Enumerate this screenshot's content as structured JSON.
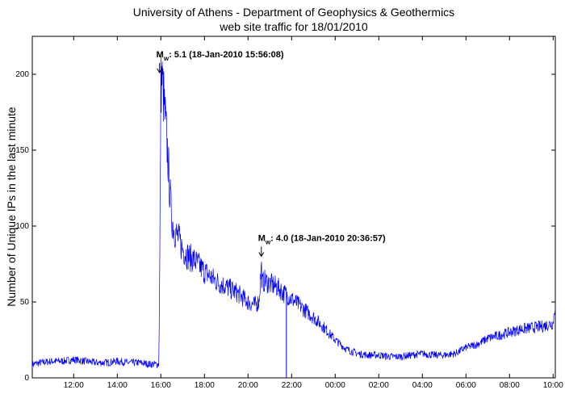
{
  "chart_data": {
    "type": "line",
    "title": "University of Athens - Department of Geophysics & Geothermics",
    "subtitle": "web site traffic for 18/01/2010",
    "xlabel": "",
    "ylabel": "Number of Unique IPs in the last minute",
    "ylim": [
      0,
      225
    ],
    "yticks": [
      0,
      50,
      100,
      150,
      200
    ],
    "xlim_hours": [
      10.1,
      34.1
    ],
    "xticks": [
      {
        "hour": 12,
        "label": "12:00"
      },
      {
        "hour": 14,
        "label": "14:00"
      },
      {
        "hour": 16,
        "label": "16:00"
      },
      {
        "hour": 18,
        "label": "18:00"
      },
      {
        "hour": 20,
        "label": "20:00"
      },
      {
        "hour": 22,
        "label": "22:00"
      },
      {
        "hour": 24,
        "label": "00:00"
      },
      {
        "hour": 26,
        "label": "02:00"
      },
      {
        "hour": 28,
        "label": "04:00"
      },
      {
        "hour": 30,
        "label": "06:00"
      },
      {
        "hour": 32,
        "label": "08:00"
      },
      {
        "hour": 34,
        "label": "10:00"
      }
    ],
    "grid": false,
    "series": [
      {
        "color": "#0000ff",
        "x_hour": [
          10.1,
          10.5,
          11,
          11.5,
          12,
          12.5,
          13,
          13.5,
          14,
          14.5,
          15,
          15.5,
          15.9,
          15.94,
          16.0,
          16.05,
          16.1,
          16.2,
          16.3,
          16.4,
          16.5,
          16.6,
          16.8,
          17.0,
          17.25,
          17.5,
          18.0,
          18.5,
          19.0,
          19.5,
          20.0,
          20.3,
          20.5,
          20.61,
          20.65,
          20.75,
          21.0,
          21.3,
          21.5,
          21.6,
          21.75,
          22.0,
          22.5,
          23.0,
          23.5,
          24.0,
          24.5,
          25.0,
          25.5,
          26.0,
          26.5,
          27.0,
          27.5,
          28.0,
          28.5,
          29.0,
          29.5,
          30.0,
          30.5,
          31.0,
          31.5,
          32.0,
          32.5,
          33.0,
          33.5,
          34.0,
          34.1
        ],
        "y": [
          9,
          10,
          11,
          11,
          12,
          11,
          10,
          10,
          11,
          10,
          10,
          9,
          9,
          55,
          195,
          197,
          190,
          170,
          150,
          125,
          105,
          98,
          92,
          85,
          80,
          78,
          70,
          64,
          60,
          56,
          50,
          48,
          50,
          74,
          62,
          64,
          62,
          60,
          58,
          56,
          55,
          52,
          46,
          40,
          33,
          25,
          19,
          16,
          15,
          15,
          14,
          14,
          15,
          16,
          15,
          15,
          16,
          20,
          22,
          26,
          28,
          30,
          32,
          33,
          34,
          36,
          50
        ]
      }
    ],
    "annotations": [
      {
        "x_hour": 15.94,
        "y": 200,
        "prefix": "M",
        "subscript": "w",
        "text": ": 5.1  (18-Jan-2010 15:56:08)"
      },
      {
        "x_hour": 20.61,
        "y": 79,
        "prefix": "M",
        "subscript": "w",
        "text": ": 4.0  (18-Jan-2010 20:36:57)"
      }
    ]
  }
}
